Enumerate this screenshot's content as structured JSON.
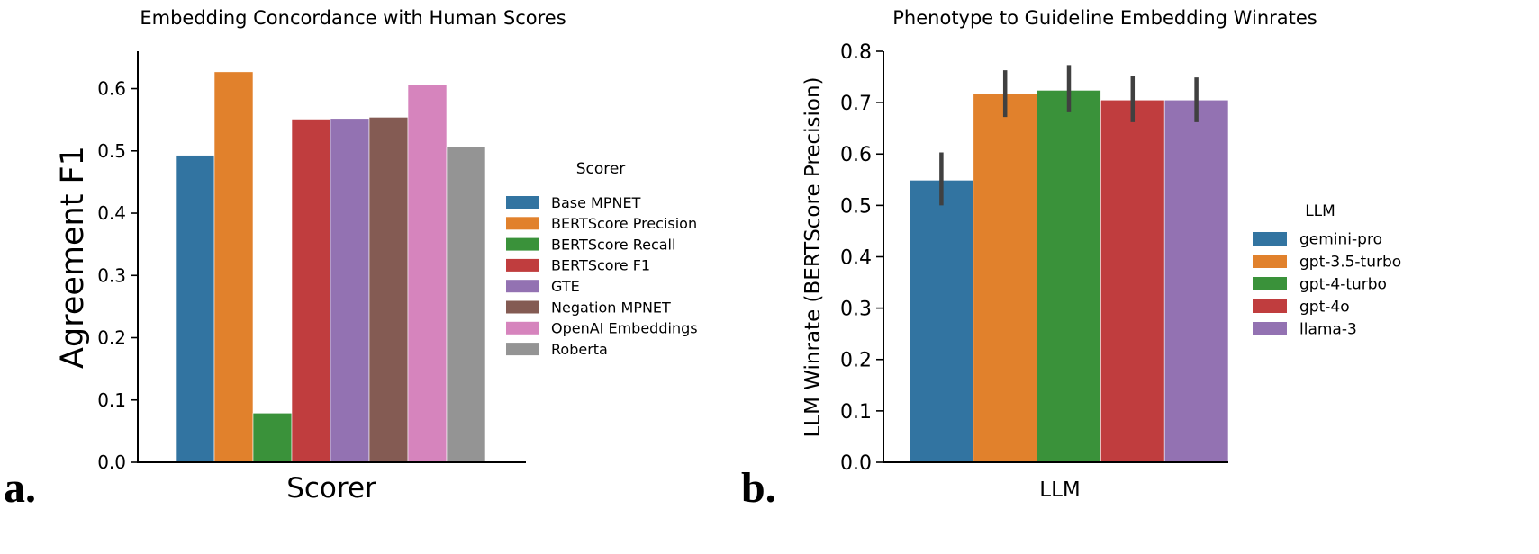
{
  "chart_data": [
    {
      "type": "bar",
      "panel_label": "a.",
      "title": "Embedding Concordance with Human Scores",
      "xlabel": "Scorer",
      "ylabel": "Agreement F1",
      "ylim": [
        0,
        0.66
      ],
      "yticks": [
        "0.0",
        "0.1",
        "0.2",
        "0.3",
        "0.4",
        "0.5",
        "0.6"
      ],
      "legend_title": "Scorer",
      "legend_position": "right",
      "grid": false,
      "categories": [
        "Base MPNET",
        "BERTScore Precision",
        "BERTScore Recall",
        "BERTScore F1",
        "GTE",
        "Negation MPNET",
        "OpenAI Embeddings",
        "Roberta"
      ],
      "values": [
        0.493,
        0.627,
        0.079,
        0.551,
        0.552,
        0.554,
        0.607,
        0.506
      ],
      "colors": [
        "#3274a1",
        "#e1812c",
        "#3a923a",
        "#c03d3e",
        "#9372b2",
        "#845b53",
        "#d684bd",
        "#949494"
      ]
    },
    {
      "type": "bar",
      "panel_label": "b.",
      "title": "Phenotype to Guideline Embedding Winrates",
      "xlabel": "LLM",
      "ylabel": "LLM Winrate (BERTScore Precision)",
      "ylim": [
        0,
        0.8
      ],
      "yticks": [
        "0.0",
        "0.1",
        "0.2",
        "0.3",
        "0.4",
        "0.5",
        "0.6",
        "0.7",
        "0.8"
      ],
      "legend_title": "LLM",
      "legend_position": "right",
      "grid": false,
      "categories": [
        "gemini-pro",
        "gpt-3.5-turbo",
        "gpt-4-turbo",
        "gpt-4o",
        "llama-3"
      ],
      "values": [
        0.549,
        0.717,
        0.724,
        0.705,
        0.705
      ],
      "error_low": [
        0.5,
        0.672,
        0.683,
        0.662,
        0.662
      ],
      "error_high": [
        0.603,
        0.763,
        0.773,
        0.751,
        0.749
      ],
      "colors": [
        "#3274a1",
        "#e1812c",
        "#3a923a",
        "#c03d3e",
        "#9372b2"
      ]
    }
  ]
}
